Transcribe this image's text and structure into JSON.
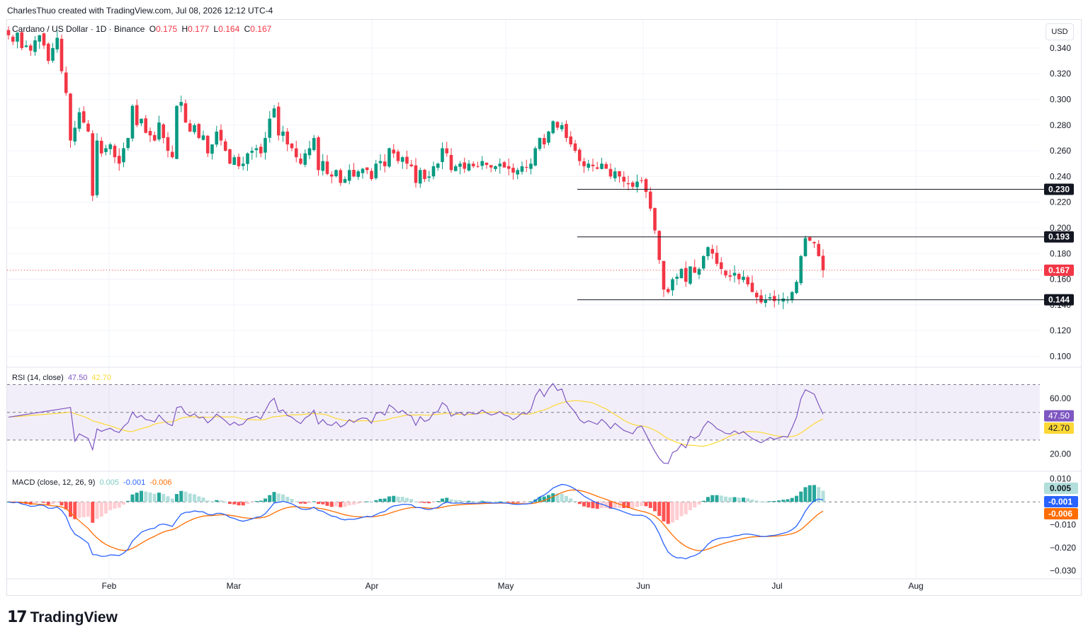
{
  "header": {
    "credit": "CharlesThuo created with TradingView.com, Jul 08, 2026 12:12 UTC-4"
  },
  "price_legend": {
    "symbol": "Cardano / US Dollar · 1D · Binance",
    "o_label": "O",
    "o": "0.175",
    "h_label": "H",
    "h": "0.177",
    "l_label": "L",
    "l": "0.164",
    "c_label": "C",
    "c": "0.167"
  },
  "currency_button": "USD",
  "rsi_legend": {
    "name": "RSI (14, close)",
    "value": "47.50",
    "ma": "42.70"
  },
  "macd_legend": {
    "name": "MACD (close, 12, 26, 9)",
    "hist": "0.005",
    "macd": "-0.001",
    "signal": "-0.006"
  },
  "colors": {
    "up": "#089981",
    "down": "#f23645",
    "rsi": "#7e57c2",
    "rsi_ma": "#fdd835",
    "macd": "#2962ff",
    "signal": "#ff6d00",
    "hist_up": "#26a69a",
    "hist_down": "#ff5252"
  },
  "footer": {
    "brand": "TradingView"
  },
  "chart_data": [
    {
      "type": "candlestick",
      "title": "Cardano / US Dollar · 1D · Binance",
      "x_ticks": [
        "Feb",
        "Mar",
        "Apr",
        "May",
        "Jun",
        "Jul",
        "Aug"
      ],
      "y_ticks": [
        "0.100",
        "0.120",
        "0.140",
        "0.160",
        "0.180",
        "0.200",
        "0.220",
        "0.240",
        "0.260",
        "0.280",
        "0.300",
        "0.320",
        "0.340"
      ],
      "ylim": [
        0.092,
        0.362
      ],
      "start_date": "2026-01-12",
      "horizontal_levels": [
        0.23,
        0.193,
        0.144
      ],
      "last_price": 0.167,
      "price_labels": [
        "0.230",
        "0.193",
        "0.167",
        "0.144"
      ],
      "closes": [
        0.35,
        0.345,
        0.352,
        0.34,
        0.342,
        0.338,
        0.346,
        0.35,
        0.342,
        0.33,
        0.34,
        0.348,
        0.322,
        0.305,
        0.268,
        0.278,
        0.29,
        0.282,
        0.275,
        0.225,
        0.268,
        0.258,
        0.262,
        0.265,
        0.255,
        0.25,
        0.262,
        0.27,
        0.295,
        0.28,
        0.285,
        0.274,
        0.272,
        0.268,
        0.282,
        0.27,
        0.26,
        0.255,
        0.295,
        0.298,
        0.282,
        0.275,
        0.28,
        0.27,
        0.272,
        0.258,
        0.265,
        0.275,
        0.268,
        0.26,
        0.25,
        0.255,
        0.248,
        0.25,
        0.258,
        0.26,
        0.262,
        0.258,
        0.27,
        0.285,
        0.293,
        0.272,
        0.275,
        0.265,
        0.262,
        0.255,
        0.25,
        0.258,
        0.262,
        0.27,
        0.245,
        0.252,
        0.242,
        0.24,
        0.245,
        0.235,
        0.238,
        0.245,
        0.24,
        0.244,
        0.246,
        0.245,
        0.238,
        0.25,
        0.252,
        0.248,
        0.262,
        0.258,
        0.252,
        0.255,
        0.25,
        0.248,
        0.235,
        0.245,
        0.238,
        0.24,
        0.248,
        0.25,
        0.262,
        0.258,
        0.245,
        0.248,
        0.25,
        0.246,
        0.25,
        0.248,
        0.248,
        0.252,
        0.249,
        0.247,
        0.248,
        0.25,
        0.247,
        0.246,
        0.243,
        0.245,
        0.248,
        0.247,
        0.25,
        0.262,
        0.27,
        0.265,
        0.275,
        0.283,
        0.278,
        0.28,
        0.27,
        0.265,
        0.26,
        0.252,
        0.248,
        0.25,
        0.248,
        0.246,
        0.25,
        0.246,
        0.24,
        0.244,
        0.24,
        0.236,
        0.234,
        0.232,
        0.236,
        0.237,
        0.228,
        0.215,
        0.198,
        0.175,
        0.152,
        0.15,
        0.16,
        0.162,
        0.168,
        0.158,
        0.17,
        0.165,
        0.168,
        0.178,
        0.185,
        0.18,
        0.172,
        0.168,
        0.163,
        0.162,
        0.165,
        0.16,
        0.162,
        0.156,
        0.15,
        0.146,
        0.142,
        0.144,
        0.146,
        0.143,
        0.144,
        0.145,
        0.144,
        0.15,
        0.158,
        0.178,
        0.192,
        0.19,
        0.188,
        0.178,
        0.167
      ],
      "series": [
        {
          "name": "RSI (14, close)",
          "last": 47.5
        },
        {
          "name": "RSI-based MA",
          "last": 42.7
        }
      ],
      "rsi": {
        "ylim": [
          8,
          82
        ],
        "y_ticks": [
          "20.00",
          "60.00"
        ],
        "bands": [
          30,
          50,
          70
        ]
      },
      "macd": {
        "ylim": [
          -0.0335,
          0.013
        ],
        "y_ticks": [
          "0.010",
          "−0.010",
          "−0.020",
          "−0.030"
        ],
        "last": {
          "hist": 0.005,
          "macd": -0.001,
          "signal": -0.006
        }
      }
    }
  ]
}
